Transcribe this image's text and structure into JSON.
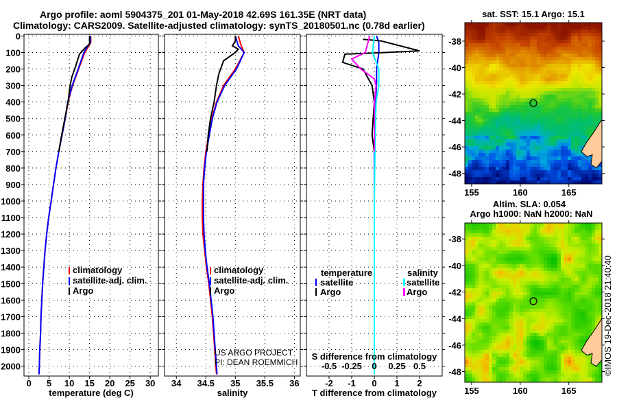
{
  "title_line1": "Argo profile: aoml 5904375_201 01-May-2018 42.69S 161.35E (NRT data)",
  "title_line2": "Climatology: CARS2009. Satellite-adjusted climatology: synTS_20180501.nc (0.78d earlier)",
  "colors": {
    "climatology": "#ff0000",
    "satellite": "#0000ff",
    "argo": "#000000",
    "sal_satellite": "#00ffff",
    "sal_argo": "#ff00ff",
    "land": "#ffcc99"
  },
  "chart_data": [
    {
      "type": "line",
      "id": "temperature",
      "xlabel": "temperature (deg C)",
      "ylabel": "depth",
      "xlim": [
        -1.2,
        32
      ],
      "ylim": [
        2060,
        -10
      ],
      "xticks": [
        "0",
        "5",
        "10",
        "15",
        "20",
        "25",
        "30"
      ],
      "xtick_values": [
        0,
        5,
        10,
        15,
        20,
        25,
        30
      ],
      "yticks": [
        "0",
        "100",
        "200",
        "300",
        "400",
        "500",
        "600",
        "700",
        "800",
        "900",
        "1000",
        "1100",
        "1200",
        "1300",
        "1400",
        "1500",
        "1600",
        "1700",
        "1800",
        "1900",
        "2000"
      ],
      "legend": [
        "climatology",
        "satellite-adj. clim.",
        "Argo"
      ],
      "series": [
        {
          "name": "climatology",
          "color": "#ff0000",
          "points": [
            [
              15.3,
              0
            ],
            [
              15.3,
              40
            ],
            [
              14.8,
              60
            ],
            [
              13.8,
              100
            ],
            [
              12.3,
              200
            ],
            [
              10.8,
              300
            ],
            [
              9.7,
              400
            ],
            [
              9,
              500
            ],
            [
              8.2,
              600
            ],
            [
              7.4,
              700
            ],
            [
              6.7,
              800
            ],
            [
              6.1,
              900
            ],
            [
              5.5,
              1000
            ],
            [
              4.9,
              1100
            ],
            [
              4.4,
              1200
            ],
            [
              4,
              1300
            ],
            [
              3.7,
              1400
            ],
            [
              3.4,
              1500
            ],
            [
              3.2,
              1600
            ],
            [
              3,
              1700
            ],
            [
              2.9,
              1800
            ],
            [
              2.7,
              1900
            ],
            [
              2.6,
              2000
            ],
            [
              2.5,
              2050
            ]
          ]
        },
        {
          "name": "satellite-adj. clim.",
          "color": "#0000ff",
          "points": [
            [
              15.2,
              0
            ],
            [
              15.2,
              40
            ],
            [
              14.6,
              60
            ],
            [
              13.6,
              100
            ],
            [
              12.2,
              200
            ],
            [
              10.7,
              300
            ],
            [
              9.6,
              400
            ],
            [
              9,
              500
            ],
            [
              8.2,
              600
            ],
            [
              7.4,
              700
            ],
            [
              6.7,
              800
            ],
            [
              6.1,
              900
            ],
            [
              5.5,
              1000
            ],
            [
              4.9,
              1100
            ],
            [
              4.4,
              1200
            ],
            [
              4,
              1300
            ],
            [
              3.7,
              1400
            ],
            [
              3.4,
              1500
            ],
            [
              3.2,
              1600
            ],
            [
              3,
              1700
            ],
            [
              2.9,
              1800
            ],
            [
              2.7,
              1900
            ],
            [
              2.6,
              2000
            ],
            [
              2.5,
              2050
            ]
          ]
        },
        {
          "name": "Argo",
          "color": "#000000",
          "points": [
            [
              15,
              0
            ],
            [
              15,
              50
            ],
            [
              14,
              70
            ],
            [
              12.5,
              110
            ],
            [
              11.6,
              180
            ],
            [
              10.6,
              250
            ],
            [
              10.2,
              300
            ],
            [
              9.7,
              400
            ],
            [
              8.9,
              500
            ],
            [
              8.1,
              600
            ],
            [
              7.4,
              700
            ]
          ]
        }
      ]
    },
    {
      "type": "line",
      "id": "salinity",
      "xlabel": "salinity",
      "ylabel": "depth",
      "xlim": [
        33.8,
        36.1
      ],
      "ylim": [
        2060,
        -10
      ],
      "xticks": [
        "34",
        "34.5",
        "35",
        "35.5",
        "36"
      ],
      "xtick_values": [
        34,
        34.5,
        35,
        35.5,
        36
      ],
      "legend": [
        "climatology",
        "satellite-adj. clim.",
        "Argo"
      ],
      "annotation": [
        "US ARGO PROJECT",
        "PI: DEAN ROEMMICH"
      ],
      "series": [
        {
          "name": "climatology",
          "color": "#ff0000",
          "points": [
            [
              35.05,
              0
            ],
            [
              35.1,
              60
            ],
            [
              35.15,
              100
            ],
            [
              35.0,
              200
            ],
            [
              34.8,
              300
            ],
            [
              34.68,
              400
            ],
            [
              34.6,
              500
            ],
            [
              34.55,
              600
            ],
            [
              34.5,
              700
            ],
            [
              34.47,
              800
            ],
            [
              34.45,
              900
            ],
            [
              34.44,
              1000
            ],
            [
              34.44,
              1100
            ],
            [
              34.45,
              1200
            ],
            [
              34.48,
              1300
            ],
            [
              34.51,
              1400
            ],
            [
              34.55,
              1500
            ],
            [
              34.58,
              1600
            ],
            [
              34.61,
              1700
            ],
            [
              34.63,
              1800
            ],
            [
              34.65,
              1900
            ],
            [
              34.67,
              2000
            ],
            [
              34.68,
              2050
            ]
          ]
        },
        {
          "name": "satellite-adj. clim.",
          "color": "#0000ff",
          "points": [
            [
              35.0,
              0
            ],
            [
              35.05,
              60
            ],
            [
              35.15,
              100
            ],
            [
              35.02,
              200
            ],
            [
              34.82,
              300
            ],
            [
              34.69,
              400
            ],
            [
              34.61,
              500
            ],
            [
              34.56,
              600
            ],
            [
              34.51,
              700
            ],
            [
              34.48,
              800
            ],
            [
              34.46,
              900
            ],
            [
              34.46,
              1000
            ],
            [
              34.46,
              1100
            ],
            [
              34.47,
              1200
            ],
            [
              34.49,
              1300
            ],
            [
              34.52,
              1400
            ],
            [
              34.56,
              1500
            ],
            [
              34.59,
              1600
            ],
            [
              34.62,
              1700
            ],
            [
              34.64,
              1800
            ],
            [
              34.66,
              1900
            ],
            [
              34.68,
              2000
            ],
            [
              34.69,
              2050
            ]
          ]
        },
        {
          "name": "Argo",
          "color": "#000000",
          "points": [
            [
              35.0,
              0
            ],
            [
              35.0,
              30
            ],
            [
              34.95,
              60
            ],
            [
              35.05,
              80
            ],
            [
              35.0,
              100
            ],
            [
              34.8,
              150
            ],
            [
              34.72,
              230
            ],
            [
              34.68,
              300
            ],
            [
              34.64,
              400
            ],
            [
              34.58,
              500
            ],
            [
              34.54,
              600
            ],
            [
              34.52,
              700
            ]
          ]
        }
      ]
    },
    {
      "type": "line",
      "id": "difference",
      "xlabel": "T difference from climatology",
      "x2label": "S difference from climatology",
      "xlim": [
        -3,
        3
      ],
      "x2lim": [
        -0.75,
        0.75
      ],
      "ylim": [
        2060,
        -10
      ],
      "xticks": [
        "-2",
        "-1",
        "0",
        "1",
        "2"
      ],
      "xtick_values": [
        -2,
        -1,
        0,
        1,
        2
      ],
      "x2ticks": [
        "-0.5",
        "-0.25",
        "0",
        "0.25",
        "0.5"
      ],
      "x2tick_values": [
        -0.5,
        -0.25,
        0,
        0.25,
        0.5
      ],
      "legend_temperature": {
        "title": "temperature",
        "items": [
          "satellite",
          "Argo"
        ]
      },
      "legend_salinity": {
        "title": "salinity",
        "items": [
          "satellite",
          "Argo"
        ]
      },
      "series": [
        {
          "name": "temperature satellite",
          "color": "#0000ff",
          "axis": "T",
          "points": [
            [
              0.1,
              0
            ],
            [
              0.2,
              40
            ],
            [
              0.2,
              100
            ],
            [
              0.1,
              200
            ],
            [
              0.1,
              300
            ],
            [
              0.05,
              400
            ],
            [
              0,
              600
            ],
            [
              0,
              1000
            ],
            [
              0,
              2050
            ]
          ]
        },
        {
          "name": "temperature Argo",
          "color": "#000000",
          "axis": "T",
          "points": [
            [
              -0.5,
              20
            ],
            [
              0.3,
              30
            ],
            [
              2,
              90
            ],
            [
              0.5,
              100
            ],
            [
              -1.3,
              110
            ],
            [
              -1.4,
              160
            ],
            [
              -0.5,
              200
            ],
            [
              -0.1,
              300
            ],
            [
              0,
              400
            ],
            [
              -0.1,
              600
            ],
            [
              0,
              700
            ]
          ]
        },
        {
          "name": "salinity satellite",
          "color": "#00ffff",
          "axis": "S",
          "points": [
            [
              0,
              0
            ],
            [
              -0.02,
              100
            ],
            [
              0.05,
              200
            ],
            [
              0.05,
              300
            ],
            [
              0.02,
              400
            ],
            [
              0.01,
              600
            ],
            [
              0,
              1000
            ],
            [
              0,
              2050
            ]
          ]
        },
        {
          "name": "salinity Argo",
          "color": "#ff00ff",
          "axis": "S",
          "points": [
            [
              -0.05,
              0
            ],
            [
              -0.1,
              100
            ],
            [
              -0.25,
              140
            ],
            [
              -0.15,
              200
            ],
            [
              0,
              260
            ],
            [
              0.02,
              300
            ],
            [
              0,
              400
            ],
            [
              0,
              700
            ]
          ]
        }
      ]
    },
    {
      "type": "heatmap",
      "id": "sst_map",
      "title": "sat. SST: 15.1 Argo: 15.1",
      "xlim": [
        154.3,
        168.4
      ],
      "ylim": [
        -48.8,
        -36.6
      ],
      "xticks": [
        "155",
        "160",
        "165"
      ],
      "xtick_values": [
        155,
        160,
        165
      ],
      "yticks": [
        "-38",
        "-40",
        "-42",
        "-44",
        "-46",
        "-48"
      ],
      "ytick_values": [
        -38,
        -40,
        -42,
        -44,
        -46,
        -48
      ],
      "marker": [
        161.35,
        -42.69
      ]
    },
    {
      "type": "heatmap",
      "id": "sla_map",
      "title": "Altim. SLA: 0.054",
      "subtitle": "Argo h1000: NaN h2000: NaN",
      "xlim": [
        154.3,
        168.4
      ],
      "ylim": [
        -48.8,
        -36.8
      ],
      "xticks": [
        "155",
        "160",
        "165"
      ],
      "xtick_values": [
        155,
        160,
        165
      ],
      "yticks": [
        "-38",
        "-40",
        "-42",
        "-44",
        "-46",
        "-48"
      ],
      "ytick_values": [
        -38,
        -40,
        -42,
        -44,
        -46,
        -48
      ],
      "marker": [
        161.35,
        -42.69
      ]
    }
  ],
  "credit": "©IMOS 19-Dec-2018 21:40:40"
}
